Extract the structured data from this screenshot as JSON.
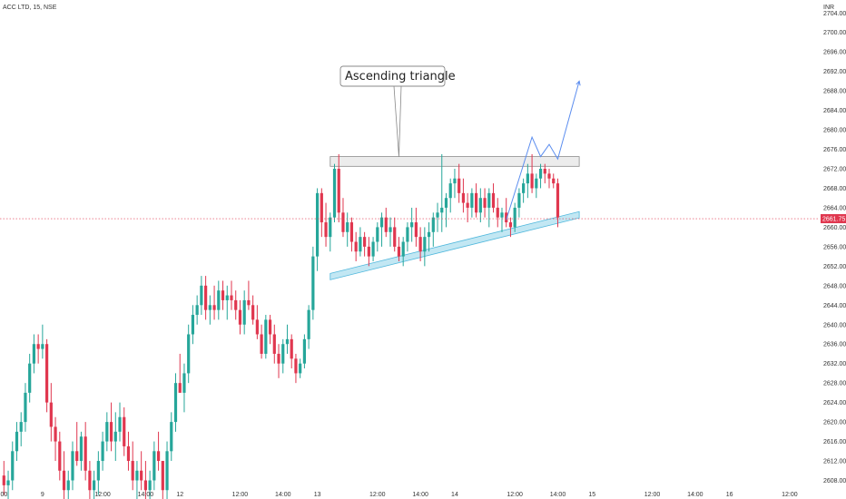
{
  "header": {
    "symbol_label": "ACC LTD, 15, NSE",
    "currency_label": "INR"
  },
  "colors": {
    "up": "#26a69a",
    "down": "#e0374f",
    "projection": "#5b8def",
    "channel": "#8fd3ea",
    "resistance": "#c9c9c9",
    "price_tag": "#e0374f"
  },
  "annotation": {
    "text": "Ascending triangle"
  },
  "last_price": {
    "value": 2661.75,
    "label": "2661.75"
  },
  "chart_data": {
    "type": "candlestick",
    "title": "",
    "ylim": [
      2606,
      2708
    ],
    "y_ticks": [
      2608,
      2612,
      2616,
      2620,
      2624,
      2628,
      2632,
      2636,
      2640,
      2644,
      2648,
      2652,
      2656,
      2660,
      2664,
      2668,
      2672,
      2676,
      2680,
      2684,
      2688,
      2692,
      2696,
      2700,
      2704
    ],
    "y_tick_labels": [
      "2608.00",
      "2612.00",
      "2616.00",
      "2620.00",
      "2624.00",
      "2628.00",
      "2632.00",
      "2636.00",
      "2640.00",
      "2644.00",
      "2648.00",
      "2652.00",
      "2656.00",
      "2660.00",
      "2664.00",
      "2668.00",
      "2672.00",
      "2676.00",
      "2680.00",
      "2684.00",
      "2688.00",
      "2692.00",
      "2696.00",
      "2700.00",
      "2704.00"
    ],
    "x_ticks": [
      {
        "i": -1,
        "label": "14:00"
      },
      {
        "i": 9,
        "label": "9"
      },
      {
        "i": 23,
        "label": "12:00"
      },
      {
        "i": 33,
        "label": "14:00"
      },
      {
        "i": 41,
        "label": "12"
      },
      {
        "i": 55,
        "label": "12:00"
      },
      {
        "i": 65,
        "label": "14:00"
      },
      {
        "i": 73,
        "label": "13"
      },
      {
        "i": 87,
        "label": "12:00"
      },
      {
        "i": 97,
        "label": "14:00"
      },
      {
        "i": 105,
        "label": "14"
      },
      {
        "i": 119,
        "label": "12:00"
      },
      {
        "i": 129,
        "label": "14:00"
      },
      {
        "i": 137,
        "label": "15"
      },
      {
        "i": 151,
        "label": "12:00"
      },
      {
        "i": 161,
        "label": "14:00"
      },
      {
        "i": 169,
        "label": "16"
      },
      {
        "i": 183,
        "label": "12:00"
      }
    ],
    "candles": [
      [
        2609,
        2612,
        2605,
        2607
      ],
      [
        2607,
        2610,
        2603,
        2608
      ],
      [
        2608,
        2616,
        2606,
        2614
      ],
      [
        2614,
        2620,
        2612,
        2618
      ],
      [
        2618,
        2622,
        2615,
        2620
      ],
      [
        2620,
        2628,
        2618,
        2626
      ],
      [
        2626,
        2634,
        2624,
        2632
      ],
      [
        2632,
        2638,
        2630,
        2636
      ],
      [
        2636,
        2638,
        2632,
        2635
      ],
      [
        2635,
        2640,
        2633,
        2636
      ],
      [
        2636,
        2637,
        2622,
        2624
      ],
      [
        2624,
        2628,
        2616,
        2619
      ],
      [
        2619,
        2621,
        2612,
        2616
      ],
      [
        2616,
        2618,
        2608,
        2610
      ],
      [
        2610,
        2614,
        2604,
        2606
      ],
      [
        2606,
        2610,
        2603,
        2608
      ],
      [
        2608,
        2616,
        2606,
        2614
      ],
      [
        2614,
        2620,
        2611,
        2612
      ],
      [
        2612,
        2618,
        2610,
        2617
      ],
      [
        2617,
        2620,
        2608,
        2610
      ],
      [
        2610,
        2612,
        2604,
        2606
      ],
      [
        2606,
        2610,
        2603,
        2608
      ],
      [
        2608,
        2614,
        2605,
        2612
      ],
      [
        2612,
        2618,
        2610,
        2616
      ],
      [
        2616,
        2622,
        2614,
        2620
      ],
      [
        2620,
        2624,
        2614,
        2616
      ],
      [
        2616,
        2622,
        2612,
        2618
      ],
      [
        2618,
        2624,
        2616,
        2621
      ],
      [
        2621,
        2623,
        2613,
        2615
      ],
      [
        2615,
        2618,
        2610,
        2612
      ],
      [
        2612,
        2616,
        2606,
        2608
      ],
      [
        2608,
        2612,
        2604,
        2610
      ],
      [
        2610,
        2614,
        2606,
        2608
      ],
      [
        2608,
        2612,
        2603,
        2606
      ],
      [
        2606,
        2610,
        2604,
        2608
      ],
      [
        2608,
        2616,
        2606,
        2614
      ],
      [
        2614,
        2618,
        2610,
        2612
      ],
      [
        2612,
        2612,
        2604,
        2606
      ],
      [
        2606,
        2616,
        2604,
        2614
      ],
      [
        2614,
        2622,
        2612,
        2620
      ],
      [
        2620,
        2630,
        2618,
        2628
      ],
      [
        2628,
        2634,
        2626,
        2626
      ],
      [
        2626,
        2632,
        2622,
        2630
      ],
      [
        2630,
        2640,
        2628,
        2638
      ],
      [
        2638,
        2644,
        2636,
        2642
      ],
      [
        2642,
        2646,
        2640,
        2644
      ],
      [
        2644,
        2650,
        2642,
        2648
      ],
      [
        2648,
        2650,
        2641,
        2643
      ],
      [
        2643,
        2646,
        2640,
        2644
      ],
      [
        2644,
        2648,
        2641,
        2643
      ],
      [
        2643,
        2649,
        2641,
        2647
      ],
      [
        2647,
        2649,
        2643,
        2645
      ],
      [
        2645,
        2648,
        2641,
        2646
      ],
      [
        2646,
        2649,
        2643,
        2645
      ],
      [
        2645,
        2647,
        2641,
        2643
      ],
      [
        2643,
        2645,
        2638,
        2640
      ],
      [
        2640,
        2647,
        2638,
        2645
      ],
      [
        2645,
        2649,
        2643,
        2644
      ],
      [
        2644,
        2646,
        2640,
        2641
      ],
      [
        2641,
        2644,
        2637,
        2638
      ],
      [
        2638,
        2640,
        2633,
        2634
      ],
      [
        2634,
        2642,
        2633,
        2641
      ],
      [
        2641,
        2642,
        2636,
        2638
      ],
      [
        2638,
        2640,
        2632,
        2634
      ],
      [
        2634,
        2636,
        2629,
        2632
      ],
      [
        2632,
        2637,
        2630,
        2636
      ],
      [
        2636,
        2640,
        2634,
        2637
      ],
      [
        2637,
        2638,
        2631,
        2633
      ],
      [
        2633,
        2634,
        2628,
        2630
      ],
      [
        2630,
        2633,
        2629,
        2632
      ],
      [
        2632,
        2638,
        2631,
        2637
      ],
      [
        2637,
        2644,
        2635,
        2643
      ],
      [
        2643,
        2656,
        2641,
        2654
      ],
      [
        2654,
        2668,
        2651,
        2667
      ],
      [
        2667,
        2668,
        2658,
        2661
      ],
      [
        2661,
        2665,
        2656,
        2658
      ],
      [
        2658,
        2663,
        2655,
        2662
      ],
      [
        2662,
        2673,
        2661,
        2672
      ],
      [
        2672,
        2675,
        2661,
        2663
      ],
      [
        2663,
        2666,
        2658,
        2659
      ],
      [
        2659,
        2663,
        2656,
        2661
      ],
      [
        2661,
        2662,
        2655,
        2657
      ],
      [
        2657,
        2659,
        2653,
        2655
      ],
      [
        2655,
        2660,
        2654,
        2658
      ],
      [
        2658,
        2659,
        2654,
        2656
      ],
      [
        2656,
        2658,
        2652,
        2654
      ],
      [
        2654,
        2658,
        2653,
        2657
      ],
      [
        2657,
        2661,
        2655,
        2660
      ],
      [
        2660,
        2663,
        2656,
        2662
      ],
      [
        2662,
        2664,
        2658,
        2659
      ],
      [
        2659,
        2662,
        2656,
        2660
      ],
      [
        2660,
        2662,
        2655,
        2656
      ],
      [
        2656,
        2658,
        2653,
        2654
      ],
      [
        2654,
        2658,
        2652,
        2657
      ],
      [
        2657,
        2661,
        2655,
        2660
      ],
      [
        2660,
        2664,
        2657,
        2661
      ],
      [
        2661,
        2664,
        2656,
        2658
      ],
      [
        2658,
        2660,
        2653,
        2655
      ],
      [
        2655,
        2660,
        2652,
        2658
      ],
      [
        2658,
        2661,
        2655,
        2659
      ],
      [
        2659,
        2663,
        2656,
        2662
      ],
      [
        2662,
        2665,
        2659,
        2663
      ],
      [
        2663,
        2675,
        2659,
        2664
      ],
      [
        2664,
        2667,
        2660,
        2666
      ],
      [
        2666,
        2670,
        2663,
        2669
      ],
      [
        2669,
        2672,
        2666,
        2670
      ],
      [
        2670,
        2673,
        2665,
        2667
      ],
      [
        2667,
        2670,
        2663,
        2665
      ],
      [
        2665,
        2667,
        2661,
        2664
      ],
      [
        2664,
        2668,
        2662,
        2667
      ],
      [
        2667,
        2669,
        2662,
        2663
      ],
      [
        2663,
        2668,
        2661,
        2666
      ],
      [
        2666,
        2668,
        2662,
        2664
      ],
      [
        2664,
        2668,
        2660,
        2667
      ],
      [
        2667,
        2669,
        2663,
        2664
      ],
      [
        2664,
        2666,
        2660,
        2662
      ],
      [
        2662,
        2664,
        2659,
        2663
      ],
      [
        2663,
        2666,
        2660,
        2661
      ],
      [
        2661,
        2662,
        2658,
        2660
      ],
      [
        2660,
        2665,
        2659,
        2664
      ],
      [
        2664,
        2668,
        2662,
        2667
      ],
      [
        2667,
        2670,
        2665,
        2669
      ],
      [
        2669,
        2673,
        2666,
        2671
      ],
      [
        2671,
        2675,
        2667,
        2668
      ],
      [
        2668,
        2671,
        2666,
        2670
      ],
      [
        2670,
        2673,
        2668,
        2672
      ],
      [
        2672,
        2673,
        2669,
        2671
      ],
      [
        2671,
        2672,
        2668,
        2670
      ],
      [
        2670,
        2671,
        2668,
        2669
      ],
      [
        2669,
        2670,
        2660,
        2662
      ]
    ]
  },
  "drawings": {
    "resistance_zone": {
      "i0": 76,
      "i1": 134,
      "y_top": 2674.5,
      "y_bottom": 2672.5
    },
    "support_channel": {
      "i0": 76,
      "i1": 134,
      "y0_top": 2650.5,
      "y0_bottom": 2649.2,
      "y1_top": 2663.2,
      "y1_bottom": 2661.9
    },
    "callout_anchor": {
      "i": 92,
      "y": 2674.5
    },
    "projection_path": [
      {
        "i": 117,
        "y": 2661.5
      },
      {
        "i": 123,
        "y": 2678.5
      },
      {
        "i": 125,
        "y": 2674.5
      },
      {
        "i": 127,
        "y": 2677
      },
      {
        "i": 129,
        "y": 2674
      },
      {
        "i": 134,
        "y": 2690
      }
    ]
  }
}
